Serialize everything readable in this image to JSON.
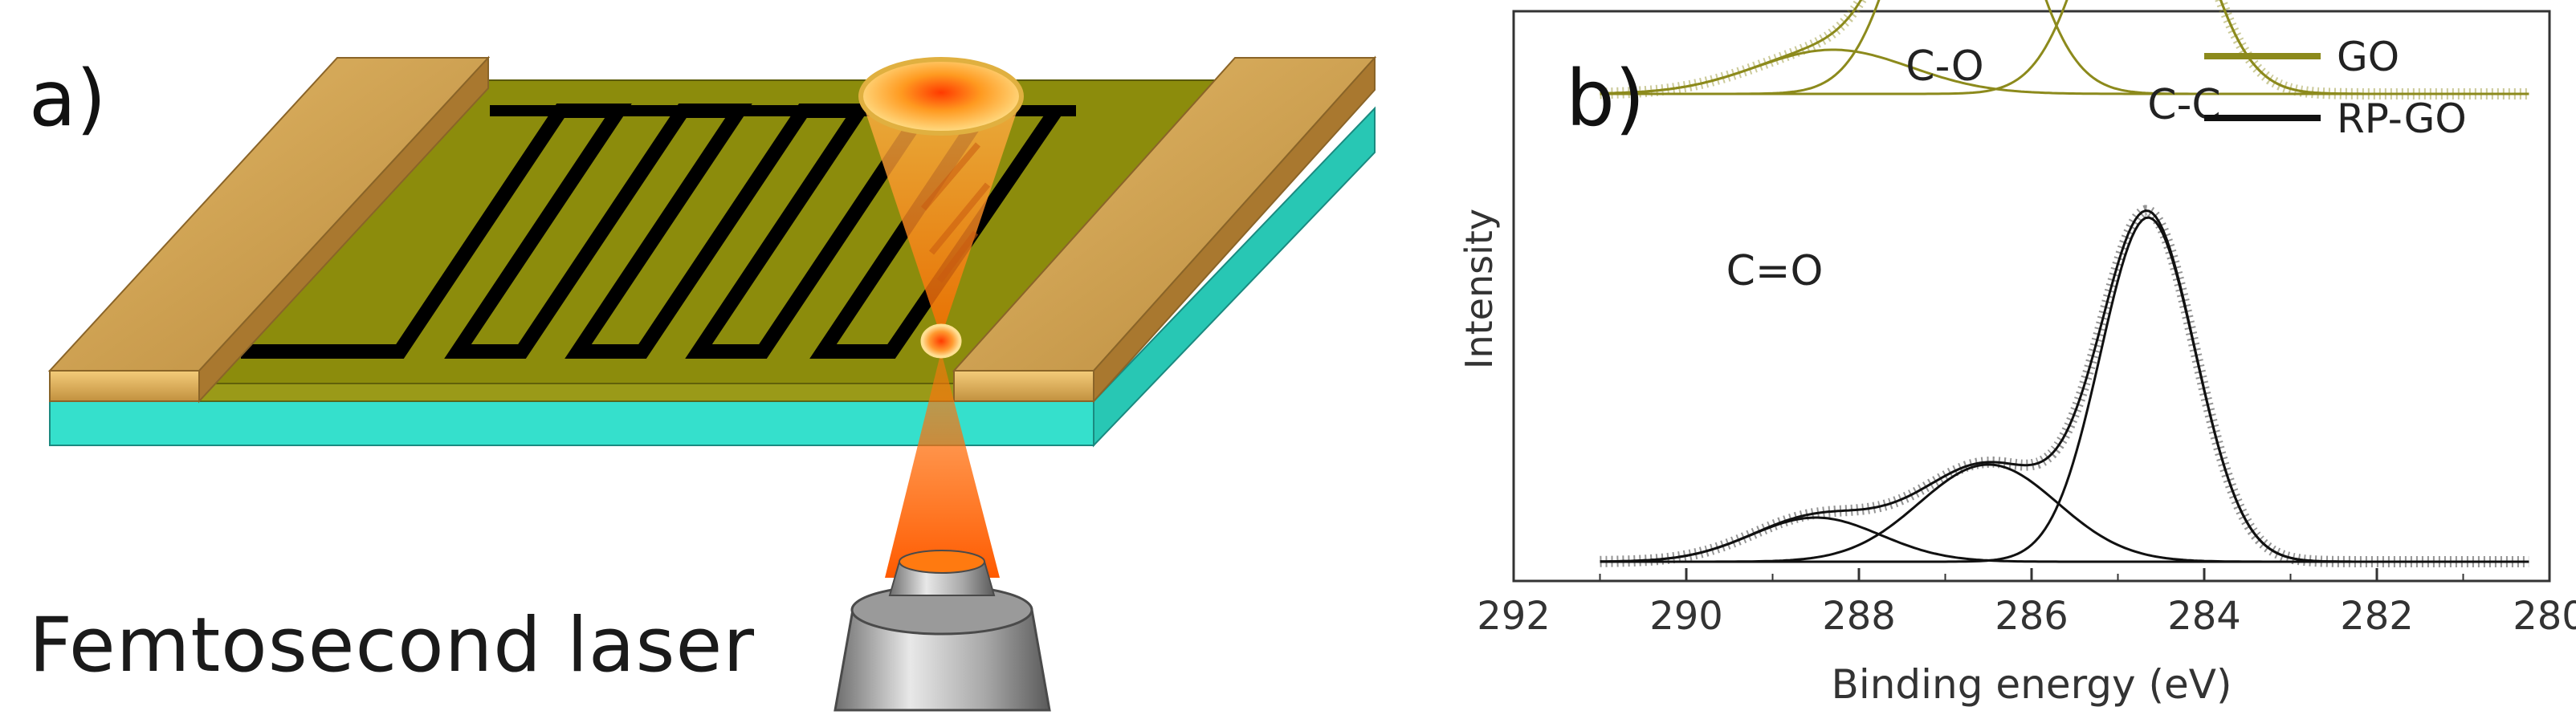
{
  "panel_a": {
    "label": "a)",
    "caption": "Femtosecond laser",
    "colors": {
      "substrate": "#38e6d2",
      "film": "#8c8c0c",
      "electrode": "#c89a48",
      "pattern": "#000000",
      "laser": "#ff8a1a"
    }
  },
  "panel_b": {
    "label": "b)",
    "peak_labels": [
      "C-O",
      "C-C",
      "C=O"
    ],
    "colors": {
      "GO": "#8c8a1c",
      "RP-GO": "#111111"
    }
  },
  "chart_data": {
    "type": "line",
    "xlabel": "Binding energy (eV)",
    "ylabel": "Intensity",
    "xlim": [
      292,
      280
    ],
    "x_reversed": true,
    "xticks": [
      292,
      290,
      288,
      286,
      284,
      282,
      280
    ],
    "y_ticks_shown": false,
    "legend": {
      "placement": "top-right",
      "entries": [
        "GO",
        "RP-GO"
      ]
    },
    "annotations": [
      {
        "text": "C-O",
        "x": 286.8
      },
      {
        "text": "C-C",
        "x": 284.7
      },
      {
        "text": "C=O",
        "x": 288.4
      }
    ],
    "series": [
      {
        "name": "GO",
        "color": "#8c8a1c",
        "baseline": 0.53,
        "components": [
          {
            "label": "C=O",
            "center": 288.3,
            "amplitude": 0.05,
            "width": 0.9
          },
          {
            "label": "C-O",
            "center": 286.8,
            "amplitude": 0.36,
            "width": 0.62
          },
          {
            "label": "C-C",
            "center": 284.7,
            "amplitude": 0.32,
            "width": 0.6
          }
        ]
      },
      {
        "name": "RP-GO",
        "color": "#111111",
        "baseline": 0.0,
        "components": [
          {
            "label": "C=O",
            "center": 288.5,
            "amplitude": 0.05,
            "width": 0.75
          },
          {
            "label": "C-O",
            "center": 286.5,
            "amplitude": 0.11,
            "width": 0.8
          },
          {
            "label": "C-C",
            "center": 284.65,
            "amplitude": 0.39,
            "width": 0.55
          }
        ]
      }
    ]
  }
}
